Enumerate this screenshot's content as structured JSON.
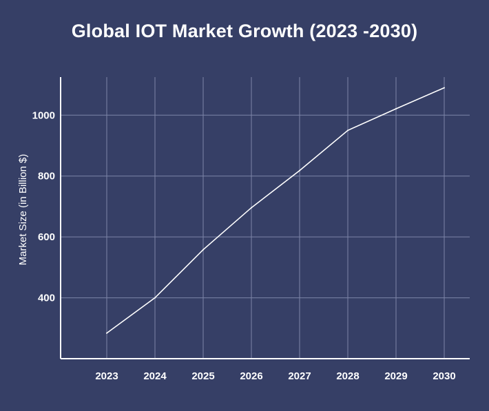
{
  "chart_data": {
    "type": "line",
    "title": "Global IOT Market Growth (2023 -2030)",
    "xlabel": "",
    "ylabel": "Market Size  (in Billion $)",
    "categories": [
      "2023",
      "2024",
      "2025",
      "2026",
      "2027",
      "2028",
      "2029",
      "2030"
    ],
    "x": [
      2023,
      2024,
      2025,
      2026,
      2027,
      2028,
      2029,
      2030
    ],
    "y": [
      284,
      400,
      558,
      696,
      818,
      950,
      1021,
      1090
    ],
    "ylim": [
      200,
      1125
    ],
    "yticks": [
      400,
      600,
      800,
      1000
    ],
    "grid": true,
    "legend": "none",
    "colors": {
      "background": "#363f66",
      "line": "#ffffff",
      "grid": "#7d85a8",
      "text": "#ffffff"
    }
  }
}
